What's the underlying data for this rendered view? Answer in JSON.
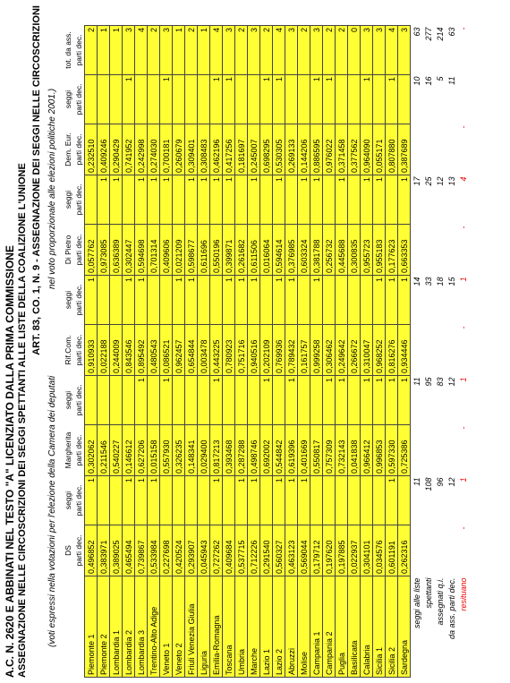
{
  "header": {
    "line1": "A.C. N. 2620 E ABBINATI NEL TESTO \"A\" LICENZIATO DALLA PRIMA COMMISSIONE",
    "line2": "ASSEGNAZIONE NELLE CIRCOSCRIZIONI DEI SEGGI SPETTANTI ALLE LISTE DELLA COALIZIONE L'UNIONE",
    "line3": "ART. 83, CO. 1, N. 9 - ASSEGNAZIONE DEI SEGGI NELLE CIRCOSCRIZIONI",
    "note_left": "(voti espressi nella votazioni per l'elezione della Camera dei deputati",
    "note_right": "nel voto proporzionale alle elezioni politiche 2001.)"
  },
  "table": {
    "headers": [
      [
        "DS",
        "parti dec."
      ],
      [
        "seggi",
        "parti dec."
      ],
      [
        "Margherita",
        "parti dec."
      ],
      [
        "seggi",
        "parti dec."
      ],
      [
        "Rif.Com.",
        "parti dec."
      ],
      [
        "seggi",
        "parti dec."
      ],
      [
        "Di Pietro",
        "parti dec."
      ],
      [
        "seggi",
        "parti dec."
      ],
      [
        "Dem. Eur.",
        "parti dec."
      ],
      [
        "seggi",
        "parti dec."
      ],
      [
        "tot. da ass.",
        "parti dec."
      ]
    ],
    "rows": [
      [
        "Piemonte 1",
        "0,496852",
        1,
        "0,302062",
        null,
        "0,910933",
        1,
        "0,057762",
        null,
        "0,232510",
        null,
        2
      ],
      [
        "Piemonte 2",
        "0,383971",
        null,
        "0,211546",
        null,
        "0,022188",
        null,
        "0,973085",
        1,
        "0,409246",
        null,
        1
      ],
      [
        "Lombardia 1",
        "0,389025",
        null,
        "0,540227",
        null,
        "0,244009",
        null,
        "0,636389",
        1,
        "0,290429",
        null,
        1
      ],
      [
        "Lombardia 2",
        "0,465494",
        1,
        "0,146612",
        null,
        "0,843546",
        1,
        "0,302447",
        null,
        "0,741952",
        1,
        3
      ],
      [
        "Lombardia 3",
        "0,739867",
        1,
        "0,627206",
        1,
        "0,895492",
        1,
        "0,594698",
        1,
        "0,242998",
        null,
        4
      ],
      [
        "Trentino-Alto Adige",
        "0,533984",
        1,
        "0,015158",
        null,
        "0,480543",
        null,
        "0,701314",
        1,
        "0,274030",
        null,
        2
      ],
      [
        "Veneto 1",
        "0,227698",
        null,
        "0,557930",
        1,
        "0,086521",
        null,
        "0,409606",
        1,
        "0,700181",
        1,
        3
      ],
      [
        "Veneto 2",
        "0,420524",
        null,
        "0,326235",
        null,
        "0,962457",
        1,
        "0,021209",
        null,
        "0,260679",
        null,
        1
      ],
      [
        "Friuli Venezia Giulia",
        "0,293907",
        null,
        "0,148341",
        null,
        "0,654844",
        1,
        "0,598677",
        1,
        "0,309401",
        null,
        2
      ],
      [
        "Liguria",
        "0,045943",
        null,
        "0,029400",
        null,
        "0,003478",
        null,
        "0,611696",
        1,
        "0,308483",
        null,
        1
      ],
      [
        "Emilia-Romagna",
        "0,727262",
        1,
        "0,817213",
        1,
        "0,443225",
        null,
        "0,550196",
        1,
        "0,462196",
        1,
        4
      ],
      [
        "Toscana",
        "0,409684",
        null,
        "0,393468",
        null,
        "0,780923",
        1,
        "0,399871",
        1,
        "0,417256",
        1,
        3
      ],
      [
        "Umbria",
        "0,537715",
        1,
        "0,287288",
        null,
        "0,751716",
        1,
        "0,261682",
        null,
        "0,181697",
        null,
        2
      ],
      [
        "Marche",
        "0,712226",
        1,
        "0,498746",
        null,
        "0,940516",
        1,
        "0,611506",
        1,
        "0,245007",
        null,
        3
      ],
      [
        "Lazio 1",
        "0,291540",
        null,
        "0,692002",
        1,
        "0,202109",
        null,
        "0,016064",
        null,
        "0,698295",
        1,
        2
      ],
      [
        "Lazio 2",
        "0,560327",
        1,
        "0,544842",
        null,
        "0,769936",
        1,
        "0,594614",
        1,
        "0,530305",
        1,
        4
      ],
      [
        "Abruzzi",
        "0,463123",
        1,
        "0,619396",
        1,
        "0,789432",
        1,
        "0,376985",
        null,
        "0,269133",
        null,
        3
      ],
      [
        "Molise",
        "0,569044",
        1,
        "0,401669",
        null,
        "0,161757",
        null,
        "0,603324",
        1,
        "0,144206",
        null,
        2
      ],
      [
        "Campania 1",
        "0,179712",
        null,
        "0,550817",
        null,
        "0,999258",
        1,
        "0,381788",
        1,
        "0,886595",
        1,
        3
      ],
      [
        "Campania 2",
        "0,197620",
        null,
        "0,757309",
        1,
        "0,306462",
        null,
        "0,256732",
        null,
        "0,976022",
        1,
        2
      ],
      [
        "Puglia",
        "0,197885",
        null,
        "0,732143",
        1,
        "0,249642",
        null,
        "0,445688",
        1,
        "0,371458",
        null,
        2
      ],
      [
        "Basilicata",
        "0,022937",
        null,
        "0,041838",
        null,
        "0,266672",
        null,
        "0,300835",
        null,
        "0,377562",
        null,
        0
      ],
      [
        "Calabria",
        "0,304101",
        null,
        "0,966412",
        1,
        "0,310047",
        null,
        "0,955723",
        1,
        "0,964090",
        1,
        3
      ],
      [
        "Sicilia 1",
        "0,034576",
        null,
        "0,996853",
        1,
        "0,968252",
        1,
        "0,955183",
        1,
        "0,055171",
        null,
        3
      ],
      [
        "Sicilia 2",
        "0,601191",
        1,
        "0,597330",
        1,
        "0,816276",
        1,
        "0,177623",
        null,
        "0,807880",
        1,
        4
      ],
      [
        "Sardegna",
        "0,262316",
        null,
        "0,725386",
        1,
        "0,934446",
        1,
        "0,663353",
        1,
        "0,387689",
        null,
        3
      ]
    ],
    "summary": [
      [
        "seggi alle liste",
        null,
        11,
        null,
        11,
        null,
        14,
        null,
        17,
        null,
        10,
        63
      ],
      [
        "spettanti",
        null,
        108,
        null,
        95,
        null,
        33,
        null,
        25,
        null,
        16,
        277
      ],
      [
        "assegnati q.i.",
        null,
        96,
        null,
        83,
        null,
        18,
        null,
        12,
        null,
        5,
        214
      ],
      [
        "da ass. parti dec.",
        null,
        12,
        null,
        12,
        null,
        15,
        null,
        13,
        null,
        11,
        63
      ],
      [
        "resituano",
        "-",
        1,
        "-",
        1,
        "-",
        1,
        "-",
        4,
        "-",
        null,
        "-"
      ]
    ]
  }
}
